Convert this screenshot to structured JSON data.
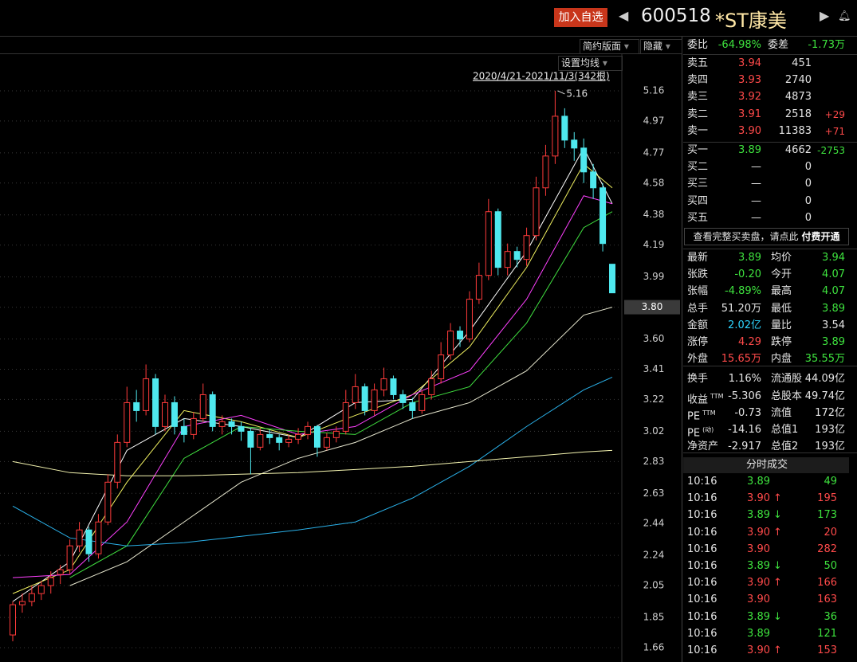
{
  "header": {
    "button": "加入自选",
    "code": "600518",
    "name": "*ST康美"
  },
  "toolbar": {
    "layout": "简约版面",
    "hide": "隐藏",
    "ma_settings": "设置均线"
  },
  "chart_data": {
    "type": "candlestick",
    "range_label": "2020/4/21-2021/11/3(342根)",
    "ylim": [
      1.57,
      5.39
    ],
    "yticks": [
      5.16,
      4.97,
      4.77,
      4.58,
      4.38,
      4.19,
      3.99,
      {
        "value": 3.8,
        "label": "3.80"
      },
      {
        "value": 3.6,
        "label": "3.60"
      },
      3.41,
      3.22,
      3.02,
      2.83,
      2.63,
      2.44,
      2.24,
      2.05,
      1.85,
      1.66
    ],
    "price_tag": {
      "value": 3.8,
      "label": "3.80"
    },
    "max_price": 5.16,
    "up_color": "#ff3b3b",
    "down_color": "#4fe8ee",
    "candles": [
      [
        1.74,
        1.95,
        1.7,
        1.93
      ],
      [
        1.93,
        2.0,
        1.88,
        1.95
      ],
      [
        1.95,
        2.05,
        1.92,
        2.0
      ],
      [
        2.0,
        2.08,
        1.96,
        2.05
      ],
      [
        2.05,
        2.14,
        2.0,
        2.1
      ],
      [
        2.12,
        2.18,
        2.06,
        2.15
      ],
      [
        2.15,
        2.34,
        2.12,
        2.3
      ],
      [
        2.3,
        2.45,
        2.26,
        2.4
      ],
      [
        2.4,
        2.42,
        2.2,
        2.25
      ],
      [
        2.25,
        2.5,
        2.22,
        2.45
      ],
      [
        2.45,
        2.75,
        2.43,
        2.7
      ],
      [
        2.7,
        3.0,
        2.66,
        2.95
      ],
      [
        2.95,
        3.3,
        2.92,
        3.2
      ],
      [
        3.2,
        3.28,
        3.08,
        3.15
      ],
      [
        3.15,
        3.44,
        3.12,
        3.35
      ],
      [
        3.35,
        3.38,
        3.0,
        3.05
      ],
      [
        3.05,
        3.25,
        3.02,
        3.2
      ],
      [
        3.2,
        3.24,
        3.0,
        3.05
      ],
      [
        3.05,
        3.1,
        2.95,
        3.0
      ],
      [
        3.0,
        3.14,
        2.97,
        3.1
      ],
      [
        3.1,
        3.32,
        3.08,
        3.25
      ],
      [
        3.25,
        3.27,
        3.02,
        3.05
      ],
      [
        3.05,
        3.12,
        3.0,
        3.08
      ],
      [
        3.08,
        3.1,
        3.0,
        3.05
      ],
      [
        3.05,
        3.08,
        2.96,
        3.02
      ],
      [
        3.02,
        3.04,
        2.75,
        2.92
      ],
      [
        2.92,
        3.04,
        2.9,
        3.0
      ],
      [
        3.0,
        3.03,
        2.94,
        2.98
      ],
      [
        2.98,
        3.0,
        2.9,
        2.95
      ],
      [
        2.95,
        3.0,
        2.92,
        2.97
      ],
      [
        2.97,
        3.04,
        2.94,
        3.0
      ],
      [
        3.0,
        3.08,
        2.97,
        3.05
      ],
      [
        3.05,
        3.06,
        2.86,
        2.92
      ],
      [
        2.92,
        3.01,
        2.9,
        2.98
      ],
      [
        2.98,
        3.05,
        2.95,
        3.02
      ],
      [
        3.02,
        3.28,
        3.0,
        3.2
      ],
      [
        3.2,
        3.38,
        3.16,
        3.3
      ],
      [
        3.3,
        3.32,
        3.12,
        3.15
      ],
      [
        3.15,
        3.32,
        3.12,
        3.28
      ],
      [
        3.28,
        3.42,
        3.24,
        3.35
      ],
      [
        3.35,
        3.37,
        3.22,
        3.25
      ],
      [
        3.25,
        3.28,
        3.16,
        3.2
      ],
      [
        3.2,
        3.23,
        3.1,
        3.15
      ],
      [
        3.15,
        3.28,
        3.13,
        3.25
      ],
      [
        3.25,
        3.4,
        3.22,
        3.35
      ],
      [
        3.35,
        3.58,
        3.32,
        3.5
      ],
      [
        3.5,
        3.7,
        3.47,
        3.65
      ],
      [
        3.65,
        3.68,
        3.55,
        3.6
      ],
      [
        3.6,
        3.9,
        3.58,
        3.85
      ],
      [
        3.85,
        4.08,
        3.82,
        4.0
      ],
      [
        4.0,
        4.48,
        3.97,
        4.4
      ],
      [
        4.4,
        4.42,
        4.0,
        4.05
      ],
      [
        4.05,
        4.2,
        4.0,
        4.15
      ],
      [
        4.15,
        4.18,
        4.05,
        4.1
      ],
      [
        4.1,
        4.3,
        4.06,
        4.25
      ],
      [
        4.25,
        4.62,
        4.22,
        4.55
      ],
      [
        4.55,
        4.82,
        4.5,
        4.75
      ],
      [
        4.75,
        5.16,
        4.7,
        5.0
      ],
      [
        5.0,
        5.05,
        4.8,
        4.85
      ],
      [
        4.85,
        4.9,
        4.72,
        4.8
      ],
      [
        4.8,
        4.86,
        4.58,
        4.65
      ],
      [
        4.65,
        4.7,
        4.48,
        4.55
      ],
      [
        4.55,
        4.58,
        4.15,
        4.2
      ],
      [
        4.07,
        4.07,
        3.89,
        3.89
      ]
    ],
    "series": [
      {
        "color": "#ffffff",
        "x": [
          0,
          6,
          12,
          18,
          24,
          30,
          36,
          42,
          48,
          54,
          60,
          63
        ],
        "values": [
          1.95,
          2.2,
          2.9,
          3.1,
          3.05,
          2.98,
          3.2,
          3.22,
          3.65,
          4.15,
          4.8,
          4.45
        ]
      },
      {
        "color": "#f0f060",
        "x": [
          0,
          6,
          12,
          18,
          24,
          30,
          36,
          42,
          48,
          54,
          60,
          63
        ],
        "values": [
          2.0,
          2.15,
          2.7,
          3.15,
          3.08,
          2.98,
          3.12,
          3.25,
          3.55,
          4.05,
          4.7,
          4.55
        ]
      },
      {
        "color": "#ff40ff",
        "x": [
          0,
          6,
          12,
          18,
          24,
          30,
          36,
          42,
          48,
          54,
          60,
          63
        ],
        "values": [
          2.1,
          2.12,
          2.45,
          3.05,
          3.12,
          3.0,
          3.05,
          3.25,
          3.4,
          3.85,
          4.5,
          4.45
        ]
      },
      {
        "color": "#40e040",
        "x": [
          0,
          6,
          12,
          18,
          24,
          30,
          36,
          42,
          48,
          54,
          60,
          63
        ],
        "values": [
          null,
          2.1,
          2.3,
          2.85,
          3.05,
          3.02,
          3.0,
          3.2,
          3.3,
          3.7,
          4.3,
          4.4
        ]
      },
      {
        "color": "#e8e8d0",
        "x": [
          0,
          6,
          12,
          18,
          24,
          30,
          36,
          42,
          48,
          54,
          60,
          63
        ],
        "values": [
          null,
          2.05,
          2.2,
          2.45,
          2.7,
          2.85,
          2.95,
          3.1,
          3.2,
          3.4,
          3.75,
          3.8
        ]
      },
      {
        "color": "#2ab0e8",
        "x": [
          0,
          6,
          12,
          18,
          24,
          30,
          36,
          42,
          48,
          54,
          60,
          63
        ],
        "values": [
          2.55,
          2.35,
          2.3,
          2.32,
          2.36,
          2.4,
          2.45,
          2.6,
          2.8,
          3.05,
          3.28,
          3.36
        ]
      },
      {
        "color": "#f5f5b0",
        "x": [
          0,
          6,
          12,
          18,
          24,
          30,
          36,
          42,
          48,
          54,
          60,
          63
        ],
        "values": [
          2.83,
          2.76,
          2.74,
          2.74,
          2.75,
          2.76,
          2.78,
          2.8,
          2.83,
          2.86,
          2.89,
          2.9
        ]
      }
    ]
  },
  "colors": {
    "up": "#ff4a4a",
    "down": "#3ee23e",
    "flat": "#e4e4e4",
    "amount": "#2ed5ff"
  },
  "order_book": {
    "ratio_label": "委比",
    "ratio": "-64.98%",
    "diff_label": "委差",
    "diff": "-1.73万",
    "sells": [
      {
        "label": "卖五",
        "price": "3.94",
        "volume": "451"
      },
      {
        "label": "卖四",
        "price": "3.93",
        "volume": "2740"
      },
      {
        "label": "卖三",
        "price": "3.92",
        "volume": "4873"
      },
      {
        "label": "卖二",
        "price": "3.91",
        "volume": "2518",
        "change": "+29"
      },
      {
        "label": "卖一",
        "price": "3.90",
        "volume": "11383",
        "change": "+71"
      }
    ],
    "buys": [
      {
        "label": "买一",
        "price": "3.89",
        "volume": "4662",
        "change": "-2753"
      },
      {
        "label": "买二",
        "price": "—",
        "volume": "0"
      },
      {
        "label": "买三",
        "price": "—",
        "volume": "0"
      },
      {
        "label": "买四",
        "price": "—",
        "volume": "0"
      },
      {
        "label": "买五",
        "price": "—",
        "volume": "0"
      }
    ],
    "upgrade": {
      "text": "查看完整买卖盘，请点此",
      "link": "付费开通"
    }
  },
  "stats": [
    {
      "l1": "最新",
      "v1": "3.89",
      "c1": "down",
      "l2": "均价",
      "v2": "3.94",
      "c2": "down"
    },
    {
      "l1": "张跌",
      "v1": "-0.20",
      "c1": "down",
      "l2": "今开",
      "v2": "4.07",
      "c2": "down"
    },
    {
      "l1": "张幅",
      "v1": "-4.89%",
      "c1": "down",
      "l2": "最高",
      "v2": "4.07",
      "c2": "down"
    },
    {
      "l1": "总手",
      "v1": "51.20万",
      "c1": "flat",
      "l2": "最低",
      "v2": "3.89",
      "c2": "down"
    },
    {
      "l1": "金额",
      "v1": "2.02亿",
      "c1": "amount",
      "l2": "量比",
      "v2": "3.54",
      "c2": "flat"
    },
    {
      "l1": "涨停",
      "v1": "4.29",
      "c1": "up",
      "l2": "跌停",
      "v2": "3.89",
      "c2": "down"
    },
    {
      "l1": "外盘",
      "v1": "15.65万",
      "c1": "up",
      "l2": "内盘",
      "v2": "35.55万",
      "c2": "down"
    },
    {
      "l1": "换手",
      "v1": "1.16%",
      "c1": "flat",
      "l2": "流通股",
      "v2": "44.09亿",
      "c2": "flat"
    },
    {
      "l1": "收益",
      "s1": "TTM",
      "v1": "-5.306",
      "c1": "flat",
      "l2": "总股本",
      "v2": "49.74亿",
      "c2": "flat"
    },
    {
      "l1": "PE",
      "s1": "TTM",
      "v1": "-0.73",
      "c1": "flat",
      "l2": "流值",
      "v2": "172亿",
      "c2": "flat"
    },
    {
      "l1": "PE",
      "s1": "(动)",
      "v1": "-14.16",
      "c1": "flat",
      "l2": "总值1",
      "v2": "193亿",
      "c2": "flat"
    },
    {
      "l1": "净资产",
      "v1": "-2.917",
      "c1": "flat",
      "l2": "总值2",
      "v2": "193亿",
      "c2": "flat"
    }
  ],
  "trades": {
    "title": "分时成交",
    "rows": [
      {
        "time": "10:16",
        "price": "3.89",
        "volume": "49",
        "color": "down"
      },
      {
        "time": "10:16",
        "price": "3.90",
        "arrow": "↑",
        "volume": "195",
        "color": "up"
      },
      {
        "time": "10:16",
        "price": "3.89",
        "arrow": "↓",
        "volume": "173",
        "color": "down"
      },
      {
        "time": "10:16",
        "price": "3.90",
        "arrow": "↑",
        "volume": "20",
        "color": "up"
      },
      {
        "time": "10:16",
        "price": "3.90",
        "volume": "282",
        "color": "up"
      },
      {
        "time": "10:16",
        "price": "3.89",
        "arrow": "↓",
        "volume": "50",
        "color": "down"
      },
      {
        "time": "10:16",
        "price": "3.90",
        "arrow": "↑",
        "volume": "166",
        "color": "up"
      },
      {
        "time": "10:16",
        "price": "3.90",
        "volume": "163",
        "color": "up"
      },
      {
        "time": "10:16",
        "price": "3.89",
        "arrow": "↓",
        "volume": "36",
        "color": "down"
      },
      {
        "time": "10:16",
        "price": "3.89",
        "volume": "121",
        "color": "down"
      },
      {
        "time": "10:16",
        "price": "3.90",
        "arrow": "↑",
        "volume": "153",
        "color": "up"
      }
    ]
  }
}
